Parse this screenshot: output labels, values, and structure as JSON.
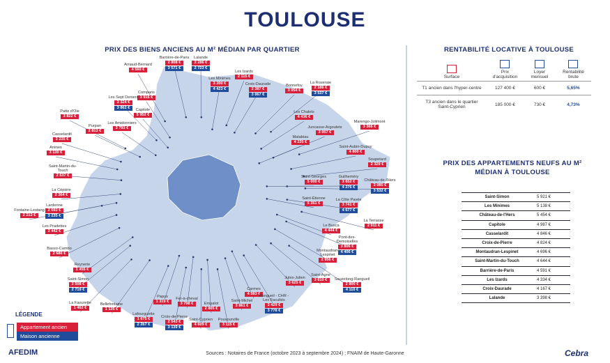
{
  "title": "TOULOUSE",
  "map": {
    "title": "PRIX DES BIENS ANCIENS AU M² MÉDIAN PAR QUARTIER",
    "districts": [
      {
        "name": "Arnaud-Bernard",
        "apartment": "4 560 €"
      },
      {
        "name": "Barrière-de-Paris",
        "apartment": "2 808 €",
        "house": "3 571 €"
      },
      {
        "name": "Lalande",
        "apartment": "2 286 €",
        "house": "2 723 €"
      },
      {
        "name": "Les Izards",
        "apartment": "2 115 €"
      },
      {
        "name": "Les Minimes",
        "apartment": "3 200 €",
        "house": "4 423 €"
      },
      {
        "name": "Croix-Daurade",
        "apartment": "2 387 €",
        "house": "3 067 €"
      },
      {
        "name": "Bonnefoy",
        "apartment": "3 054 €"
      },
      {
        "name": "La Roseraie",
        "apartment": "2 186 €",
        "house": "3 537 €"
      },
      {
        "name": "Compans",
        "apartment": "3 916 €"
      },
      {
        "name": "Les Sept Deniers",
        "apartment": "3 324 €",
        "house": "3 862 €"
      },
      {
        "name": "Capitole",
        "apartment": "5 952 €"
      },
      {
        "name": "Les Amidonniers",
        "apartment": "3 793 €"
      },
      {
        "name": "Purpan",
        "apartment": "2 813 €"
      },
      {
        "name": "Patte d'Oie",
        "apartment": "3 822 €"
      },
      {
        "name": "Les Chalets",
        "apartment": "4 436 €"
      },
      {
        "name": "Juncasse-Argoulets",
        "apartment": "3 057 €"
      },
      {
        "name": "Marengo-Jolimont",
        "apartment": "3 366 €"
      },
      {
        "name": "Matabiau",
        "apartment": "4 235 €"
      },
      {
        "name": "Casselardit",
        "apartment": "3 235 €"
      },
      {
        "name": "Arènes",
        "apartment": "3 130 €"
      },
      {
        "name": "Saint-Aubin-Dupuy",
        "apartment": "4 800 €"
      },
      {
        "name": "Soupetard",
        "apartment": "2 329 €"
      },
      {
        "name": "Saint-Martin-du-Touch",
        "apartment": "2 637 €"
      },
      {
        "name": "Saint-Georges",
        "apartment": "5 000 €"
      },
      {
        "name": "Guilheméry",
        "apartment": "3 652 €",
        "house": "4 276 €"
      },
      {
        "name": "Château-de-l'Hers",
        "apartment": "3 085 €",
        "house": "3 532 €"
      },
      {
        "name": "La Cépière",
        "apartment": "2 364 €"
      },
      {
        "name": "Saint-Étienne",
        "apartment": "5 351 €"
      },
      {
        "name": "La Côte Pavée",
        "apartment": "3 741 €",
        "house": "4 677 €"
      },
      {
        "name": "Lardenne",
        "apartment": "2 593 €",
        "house": "3 235 €"
      },
      {
        "name": "Fontaine-Lestang",
        "apartment": "2 213 €"
      },
      {
        "name": "La Terrasse",
        "apartment": "2 911 €"
      },
      {
        "name": "Les Pradettes",
        "apartment": "2 442 €"
      },
      {
        "name": "Le Busca",
        "apartment": "4 444 €"
      },
      {
        "name": "Pont-des-Demoiselles",
        "apartment": "3 806 €",
        "house": "4 406 €"
      },
      {
        "name": "Montaudran-Lespinet",
        "apartment": "2 956 €"
      },
      {
        "name": "Basso-Cambo",
        "apartment": "2 686 €"
      },
      {
        "name": "Reynerie",
        "apartment": "1 455 €"
      },
      {
        "name": "Saint-Agne",
        "apartment": "3 610 €"
      },
      {
        "name": "Saint-Simon",
        "apartment": "2 508 €",
        "house": "2 719 €"
      },
      {
        "name": "Jules-Julien",
        "apartment": "3 625 €"
      },
      {
        "name": "Sauzelong-Rangueil",
        "apartment": "2 800 €",
        "house": "4 110 €"
      },
      {
        "name": "Papus",
        "apartment": "1 319 €"
      },
      {
        "name": "La Faourette",
        "apartment": "1 462 €"
      },
      {
        "name": "Bellefontaine",
        "apartment": "1 135 €"
      },
      {
        "name": "Fer-à-cheval",
        "apartment": "3 798 €"
      },
      {
        "name": "Empalot",
        "apartment": "2 805 €"
      },
      {
        "name": "Carmes",
        "apartment": "4 583 €"
      },
      {
        "name": "Saint-Michel",
        "apartment": "3 861 €"
      },
      {
        "name": "Rangueil - CHR - Les Facultés",
        "apartment": "3 429 €",
        "house": "3 778 €"
      },
      {
        "name": "Lafourguette",
        "apartment": "1 675 €",
        "house": "2 267 €"
      },
      {
        "name": "Croix-de-Pierre",
        "apartment": "2 543 €",
        "house": "3 139 €"
      },
      {
        "name": "Saint-Cyprien",
        "apartment": "4 609 €"
      },
      {
        "name": "Pouvourville",
        "apartment": "3 115 €"
      }
    ]
  },
  "rental": {
    "title": "RENTABILITÉ LOCATIVE À TOULOUSE",
    "headers": [
      "Surface",
      "Prix d'acquisition",
      "Loyer mensuel",
      "Rentabilité brute"
    ],
    "rows": [
      [
        "T1 ancien dans l'hyper-centre",
        "127 400 €",
        "600 €",
        "5,65%"
      ],
      [
        "T3 ancien dans le quartier Saint-Cyprien",
        "185 000 €",
        "730 €",
        "4,73%"
      ]
    ]
  },
  "new_apartments": {
    "title": "PRIX DES APPARTEMENTS NEUFS AU M² MÉDIAN À TOULOUSE",
    "rows": [
      [
        "Saint-Simon",
        "5 921 €"
      ],
      [
        "Les Minimes",
        "5 138 €"
      ],
      [
        "Château-de-l'Hers",
        "5 454 €"
      ],
      [
        "Capitole",
        "4 987 €"
      ],
      [
        "Casselardit",
        "4 846 €"
      ],
      [
        "Croix-de-Pierre",
        "4 824 €"
      ],
      [
        "Montaudran-Lespinet",
        "4 696 €"
      ],
      [
        "Saint-Martin-du-Touch",
        "4 644 €"
      ],
      [
        "Barrière-de-Paris",
        "4 591 €"
      ],
      [
        "Les Izards",
        "4 334 €"
      ],
      [
        "Croix-Daurade",
        "4 167 €"
      ],
      [
        "Lalande",
        "3 398 €"
      ]
    ]
  },
  "legend": {
    "title": "LÉGENDE",
    "items": [
      "Appartement ancien",
      "Maison ancienne"
    ]
  },
  "footer": {
    "sources": "Sources : Notaires de France (octobre 2023 à septembre 2024) ; FNAIM de Haute-Garonne",
    "logos": [
      "AFEDIM",
      "Cebra"
    ]
  }
}
